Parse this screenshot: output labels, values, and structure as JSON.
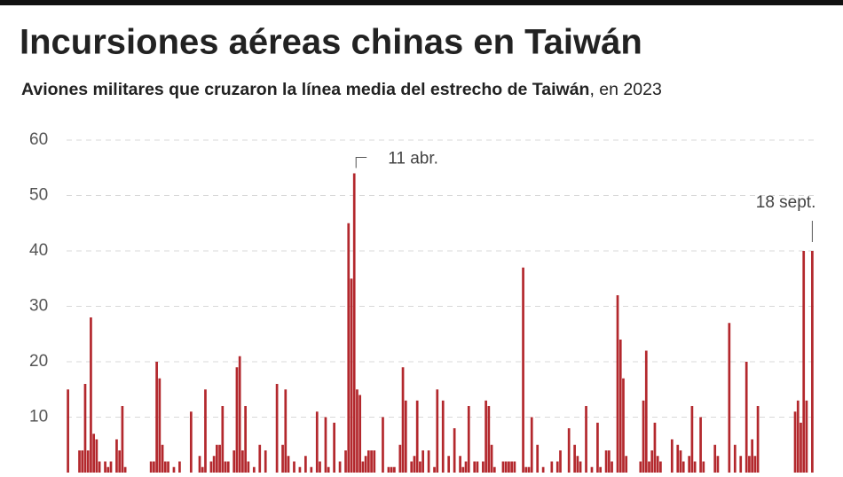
{
  "chart_data": {
    "type": "bar",
    "title": "Incursiones aéreas chinas en Taiwán",
    "subtitle": [
      "Aviones militares que cruzaron la línea media del estrecho de Taiwán",
      ", en 2023"
    ],
    "categories": [
      null,
      null,
      null,
      null,
      null,
      null,
      null,
      null,
      null,
      null,
      null,
      null,
      null,
      null,
      null,
      null,
      null,
      null,
      null,
      null,
      null,
      null,
      null,
      null,
      null,
      null,
      null,
      null,
      null,
      null,
      null,
      null,
      null,
      null,
      null,
      null,
      null,
      null,
      null,
      null,
      null,
      null,
      null,
      null,
      null,
      null,
      null,
      null,
      null,
      null,
      null,
      null,
      null,
      null,
      null,
      null,
      null,
      null,
      null,
      null,
      null,
      null,
      null,
      null,
      null,
      null,
      null,
      null,
      null,
      null,
      null,
      null,
      null,
      null,
      null,
      null,
      null,
      null,
      null,
      null,
      null,
      null,
      null,
      null,
      null,
      null,
      null,
      null,
      null,
      null,
      null,
      null,
      null,
      null,
      null,
      null,
      null,
      null,
      null,
      null,
      "11 abr.",
      null,
      null,
      null,
      null,
      null,
      null,
      null,
      null,
      null,
      null,
      null,
      null,
      null,
      null,
      null,
      null,
      null,
      null,
      null,
      null,
      null,
      null,
      null,
      null,
      null,
      null,
      null,
      null,
      null,
      null,
      null,
      null,
      null,
      null,
      null,
      null,
      null,
      null,
      null,
      null,
      null,
      null,
      null,
      null,
      null,
      null,
      null,
      null,
      null,
      null,
      null,
      null,
      null,
      null,
      null,
      null,
      null,
      null,
      null,
      null,
      null,
      null,
      null,
      null,
      null,
      null,
      null,
      null,
      null,
      null,
      null,
      null,
      null,
      null,
      null,
      null,
      null,
      null,
      null,
      null,
      null,
      null,
      null,
      null,
      null,
      null,
      null,
      null,
      null,
      null,
      null,
      null,
      null,
      null,
      null,
      null,
      null,
      null,
      null,
      null,
      null,
      null,
      null,
      null,
      null,
      null,
      null,
      null,
      null,
      null,
      null,
      null,
      null,
      null,
      null,
      null,
      null,
      null,
      null,
      null,
      null,
      null,
      null,
      null,
      null,
      null,
      null,
      null,
      null,
      null,
      null,
      null,
      null,
      null,
      null,
      null,
      null,
      null,
      null,
      null,
      null,
      null,
      null,
      null,
      null,
      null,
      null,
      null,
      null,
      null,
      null,
      null,
      null,
      null,
      null,
      null,
      null,
      null,
      null,
      "18 sept."
    ],
    "values": [
      15,
      0,
      0,
      0,
      4,
      4,
      16,
      4,
      28,
      7,
      6,
      2,
      0,
      2,
      1,
      2,
      0,
      6,
      4,
      12,
      1,
      0,
      0,
      0,
      0,
      0,
      0,
      0,
      0,
      2,
      2,
      20,
      17,
      5,
      2,
      2,
      0,
      1,
      0,
      2,
      0,
      0,
      0,
      11,
      0,
      0,
      3,
      1,
      15,
      0,
      2,
      3,
      5,
      5,
      12,
      2,
      2,
      0,
      4,
      19,
      21,
      4,
      12,
      2,
      0,
      1,
      0,
      5,
      0,
      4,
      0,
      0,
      0,
      16,
      0,
      5,
      15,
      3,
      0,
      2,
      0,
      1,
      0,
      3,
      0,
      1,
      0,
      11,
      2,
      0,
      10,
      1,
      0,
      9,
      0,
      2,
      0,
      4,
      45,
      35,
      54,
      15,
      14,
      2,
      3,
      4,
      4,
      4,
      0,
      0,
      10,
      0,
      1,
      1,
      1,
      0,
      5,
      19,
      13,
      0,
      2,
      3,
      13,
      2,
      4,
      0,
      4,
      0,
      1,
      15,
      0,
      13,
      0,
      3,
      0,
      8,
      0,
      3,
      1,
      2,
      12,
      0,
      2,
      2,
      0,
      2,
      13,
      12,
      5,
      1,
      0,
      0,
      2,
      2,
      2,
      2,
      2,
      0,
      0,
      37,
      1,
      1,
      10,
      0,
      5,
      0,
      1,
      0,
      0,
      2,
      0,
      2,
      4,
      0,
      0,
      8,
      0,
      5,
      3,
      2,
      0,
      12,
      0,
      1,
      0,
      9,
      1,
      0,
      4,
      4,
      2,
      0,
      32,
      24,
      17,
      3,
      0,
      0,
      0,
      0,
      2,
      13,
      22,
      2,
      4,
      9,
      3,
      2,
      0,
      0,
      0,
      6,
      0,
      5,
      4,
      2,
      0,
      3,
      12,
      2,
      0,
      10,
      2,
      0,
      0,
      0,
      5,
      3,
      0,
      0,
      0,
      27,
      0,
      5,
      0,
      3,
      0,
      20,
      3,
      6,
      3,
      12,
      0,
      0,
      0,
      0,
      0,
      0,
      0,
      0,
      0,
      0,
      0,
      0,
      11,
      13,
      9,
      40,
      13,
      0,
      40
    ],
    "color": "#b3282d",
    "ylim": [
      0,
      60
    ],
    "yticks": [
      10,
      20,
      30,
      40,
      50,
      60
    ],
    "grid": true
  }
}
